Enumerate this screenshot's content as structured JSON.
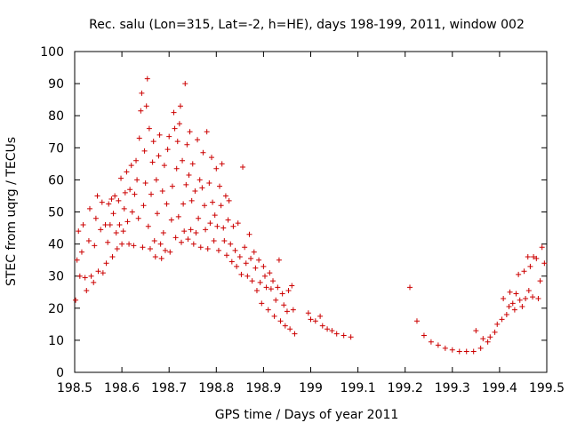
{
  "chart_data": {
    "type": "scatter",
    "title": "Rec. salu (Lon=315, Lat=-2, h=HE), days 198-199, 2011, window 002",
    "xlabel": "GPS time / Days of year 2011",
    "ylabel": "STEC from uqrg / TECUs",
    "xlim": [
      198.5,
      199.5
    ],
    "ylim": [
      0,
      100
    ],
    "grid": false,
    "legend": "none",
    "marker": "+",
    "color": "#cc0000",
    "x_ticks": [
      "198.5",
      "198.6",
      "198.7",
      "198.8",
      "198.9",
      "199",
      "199.1",
      "199.2",
      "199.3",
      "199.4",
      "199.5"
    ],
    "x_tick_values": [
      198.5,
      198.6,
      198.7,
      198.8,
      198.9,
      199.0,
      199.1,
      199.2,
      199.3,
      199.4,
      199.5
    ],
    "y_ticks": [
      "0",
      "10",
      "20",
      "30",
      "40",
      "50",
      "60",
      "70",
      "80",
      "90",
      "100"
    ],
    "y_tick_values": [
      0,
      10,
      20,
      30,
      40,
      50,
      60,
      70,
      80,
      90,
      100
    ],
    "series": [
      {
        "name": "STEC",
        "points": [
          [
            198.502,
            22.5
          ],
          [
            198.505,
            35
          ],
          [
            198.508,
            44
          ],
          [
            198.511,
            30
          ],
          [
            198.515,
            37.5
          ],
          [
            198.518,
            46
          ],
          [
            198.522,
            29.5
          ],
          [
            198.525,
            25.5
          ],
          [
            198.53,
            41
          ],
          [
            198.532,
            51
          ],
          [
            198.535,
            30
          ],
          [
            198.54,
            28
          ],
          [
            198.542,
            39.5
          ],
          [
            198.545,
            48
          ],
          [
            198.548,
            55
          ],
          [
            198.55,
            31.5
          ],
          [
            198.555,
            44.5
          ],
          [
            198.558,
            53
          ],
          [
            198.56,
            31
          ],
          [
            198.565,
            46
          ],
          [
            198.567,
            34
          ],
          [
            198.57,
            40.5
          ],
          [
            198.572,
            52.5
          ],
          [
            198.575,
            46
          ],
          [
            198.578,
            54
          ],
          [
            198.58,
            36
          ],
          [
            198.582,
            49.5
          ],
          [
            198.585,
            55
          ],
          [
            198.588,
            43.5
          ],
          [
            198.59,
            38.5
          ],
          [
            198.593,
            53.5
          ],
          [
            198.595,
            46
          ],
          [
            198.598,
            60.5
          ],
          [
            198.6,
            40
          ],
          [
            198.603,
            44
          ],
          [
            198.605,
            51
          ],
          [
            198.607,
            56
          ],
          [
            198.61,
            62.5
          ],
          [
            198.612,
            47
          ],
          [
            198.615,
            40
          ],
          [
            198.617,
            57
          ],
          [
            198.62,
            64.5
          ],
          [
            198.622,
            50
          ],
          [
            198.625,
            39.5
          ],
          [
            198.627,
            55.5
          ],
          [
            198.63,
            66
          ],
          [
            198.632,
            60
          ],
          [
            198.635,
            48
          ],
          [
            198.637,
            73
          ],
          [
            198.64,
            81.5
          ],
          [
            198.642,
            87
          ],
          [
            198.644,
            39
          ],
          [
            198.646,
            52
          ],
          [
            198.648,
            69
          ],
          [
            198.65,
            59
          ],
          [
            198.652,
            83
          ],
          [
            198.654,
            91.5
          ],
          [
            198.656,
            45.5
          ],
          [
            198.658,
            76
          ],
          [
            198.66,
            38.5
          ],
          [
            198.662,
            55.5
          ],
          [
            198.665,
            65.5
          ],
          [
            198.667,
            72
          ],
          [
            198.669,
            41
          ],
          [
            198.671,
            36
          ],
          [
            198.673,
            60
          ],
          [
            198.675,
            49.5
          ],
          [
            198.678,
            67.5
          ],
          [
            198.68,
            74
          ],
          [
            198.682,
            40
          ],
          [
            198.684,
            35.5
          ],
          [
            198.686,
            56.5
          ],
          [
            198.688,
            43.5
          ],
          [
            198.69,
            64.5
          ],
          [
            198.692,
            38
          ],
          [
            198.695,
            52.5
          ],
          [
            198.697,
            69.5
          ],
          [
            198.7,
            73.5
          ],
          [
            198.702,
            37.5
          ],
          [
            198.705,
            47.5
          ],
          [
            198.707,
            58
          ],
          [
            198.71,
            81
          ],
          [
            198.712,
            76
          ],
          [
            198.714,
            42
          ],
          [
            198.716,
            63.5
          ],
          [
            198.718,
            72
          ],
          [
            198.72,
            48.5
          ],
          [
            198.722,
            77.5
          ],
          [
            198.724,
            83
          ],
          [
            198.726,
            40.5
          ],
          [
            198.728,
            66
          ],
          [
            198.73,
            52.5
          ],
          [
            198.732,
            44
          ],
          [
            198.734,
            90
          ],
          [
            198.736,
            58.5
          ],
          [
            198.738,
            71
          ],
          [
            198.74,
            41.5
          ],
          [
            198.742,
            61.5
          ],
          [
            198.744,
            75
          ],
          [
            198.746,
            44.5
          ],
          [
            198.748,
            53.5
          ],
          [
            198.75,
            65
          ],
          [
            198.752,
            40
          ],
          [
            198.755,
            56.5
          ],
          [
            198.757,
            43.5
          ],
          [
            198.76,
            72.5
          ],
          [
            198.762,
            48
          ],
          [
            198.765,
            60
          ],
          [
            198.767,
            39
          ],
          [
            198.77,
            57.5
          ],
          [
            198.772,
            68.5
          ],
          [
            198.775,
            52
          ],
          [
            198.777,
            44.5
          ],
          [
            198.78,
            75
          ],
          [
            198.782,
            38.5
          ],
          [
            198.785,
            59
          ],
          [
            198.787,
            46.5
          ],
          [
            198.79,
            67
          ],
          [
            198.792,
            53
          ],
          [
            198.795,
            41
          ],
          [
            198.797,
            49
          ],
          [
            198.8,
            63.5
          ],
          [
            198.802,
            45.5
          ],
          [
            198.805,
            38
          ],
          [
            198.807,
            58
          ],
          [
            198.81,
            52
          ],
          [
            198.812,
            65
          ],
          [
            198.815,
            45
          ],
          [
            198.817,
            41
          ],
          [
            198.82,
            55
          ],
          [
            198.822,
            36.5
          ],
          [
            198.825,
            47.5
          ],
          [
            198.827,
            53.5
          ],
          [
            198.83,
            40
          ],
          [
            198.833,
            34.5
          ],
          [
            198.836,
            45.5
          ],
          [
            198.84,
            38
          ],
          [
            198.843,
            33
          ],
          [
            198.846,
            46.5
          ],
          [
            198.85,
            36
          ],
          [
            198.853,
            30.5
          ],
          [
            198.856,
            64
          ],
          [
            198.86,
            39
          ],
          [
            198.863,
            34
          ],
          [
            198.866,
            30
          ],
          [
            198.87,
            43
          ],
          [
            198.873,
            35.5
          ],
          [
            198.876,
            28.5
          ],
          [
            198.88,
            37.5
          ],
          [
            198.883,
            32.5
          ],
          [
            198.886,
            25.5
          ],
          [
            198.89,
            35
          ],
          [
            198.893,
            28
          ],
          [
            198.896,
            21.5
          ],
          [
            198.9,
            33
          ],
          [
            198.903,
            30
          ],
          [
            198.906,
            26.5
          ],
          [
            198.91,
            19.5
          ],
          [
            198.913,
            31
          ],
          [
            198.916,
            26
          ],
          [
            198.92,
            28.5
          ],
          [
            198.923,
            17.5
          ],
          [
            198.926,
            22.5
          ],
          [
            198.93,
            26.5
          ],
          [
            198.933,
            35
          ],
          [
            198.936,
            16
          ],
          [
            198.94,
            24.5
          ],
          [
            198.943,
            21
          ],
          [
            198.946,
            14.5
          ],
          [
            198.95,
            19
          ],
          [
            198.953,
            25.5
          ],
          [
            198.956,
            13.5
          ],
          [
            198.96,
            27
          ],
          [
            198.963,
            19.5
          ],
          [
            198.966,
            12
          ],
          [
            198.995,
            18.5
          ],
          [
            199.0,
            16.5
          ],
          [
            199.01,
            16
          ],
          [
            199.02,
            17.5
          ],
          [
            199.025,
            14.5
          ],
          [
            199.035,
            13.5
          ],
          [
            199.045,
            13
          ],
          [
            199.055,
            12
          ],
          [
            199.07,
            11.5
          ],
          [
            199.085,
            11
          ],
          [
            199.21,
            26.5
          ],
          [
            199.225,
            16
          ],
          [
            199.24,
            11.5
          ],
          [
            199.255,
            9.5
          ],
          [
            199.27,
            8.5
          ],
          [
            199.285,
            7.5
          ],
          [
            199.3,
            7
          ],
          [
            199.315,
            6.5
          ],
          [
            199.33,
            6.5
          ],
          [
            199.345,
            6.5
          ],
          [
            199.35,
            13
          ],
          [
            199.36,
            7.5
          ],
          [
            199.365,
            10.5
          ],
          [
            199.375,
            9.5
          ],
          [
            199.38,
            11
          ],
          [
            199.39,
            12.5
          ],
          [
            199.395,
            15
          ],
          [
            199.405,
            16.5
          ],
          [
            199.408,
            23
          ],
          [
            199.415,
            18
          ],
          [
            199.42,
            20.5
          ],
          [
            199.422,
            25
          ],
          [
            199.428,
            21.5
          ],
          [
            199.432,
            19.5
          ],
          [
            199.435,
            24.5
          ],
          [
            199.44,
            30.5
          ],
          [
            199.443,
            22.5
          ],
          [
            199.448,
            20.5
          ],
          [
            199.452,
            31.5
          ],
          [
            199.455,
            23
          ],
          [
            199.46,
            36
          ],
          [
            199.462,
            25.5
          ],
          [
            199.465,
            33
          ],
          [
            199.47,
            23.5
          ],
          [
            199.472,
            36
          ],
          [
            199.478,
            35.5
          ],
          [
            199.482,
            23
          ],
          [
            199.486,
            28.5
          ],
          [
            199.49,
            39
          ],
          [
            199.495,
            34
          ]
        ]
      }
    ]
  }
}
